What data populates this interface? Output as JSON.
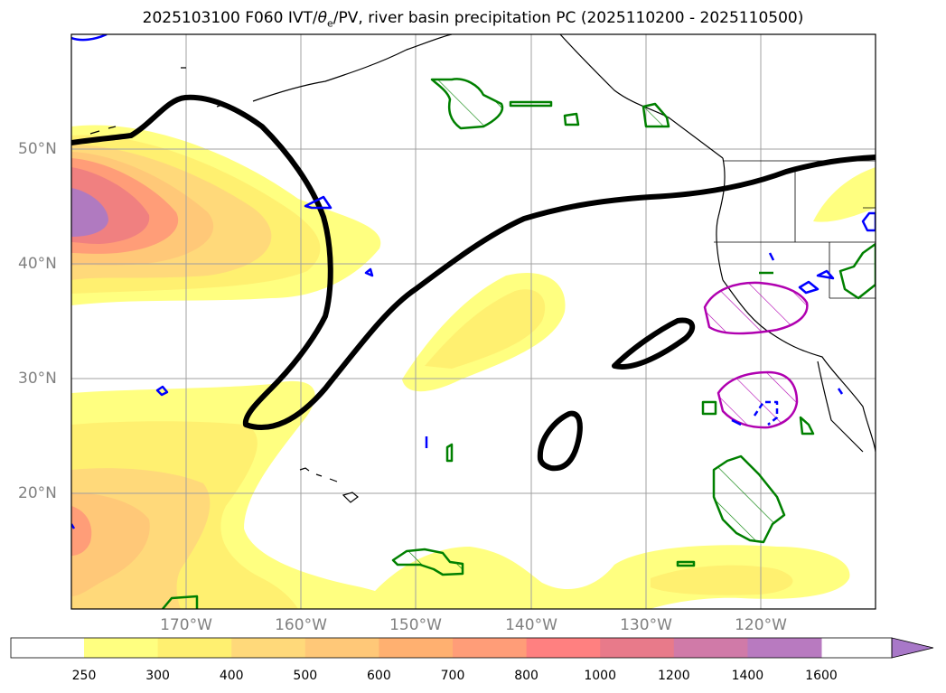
{
  "title": {
    "prefix": "2025103100 F060 IVT/",
    "theta": "θ",
    "sub": "e",
    "suffix": "/PV, river basin precipitation PC (2025110200 - 2025110500)"
  },
  "lat_labels": [
    "50°N",
    "40°N",
    "30°N",
    "20°N"
  ],
  "lon_labels": [
    "170°W",
    "160°W",
    "150°W",
    "140°W",
    "130°W",
    "120°W"
  ],
  "colorbar": {
    "levels": [
      "250",
      "300",
      "400",
      "500",
      "600",
      "700",
      "800",
      "1000",
      "1200",
      "1400",
      "1600"
    ],
    "colors": [
      "#ffffff",
      "#ffff80",
      "#fff070",
      "#ffd97a",
      "#ffc878",
      "#ffb070",
      "#ff9d78",
      "#ff8080",
      "#e87a8a",
      "#d07aa8",
      "#b87ac0",
      "#a878c8"
    ]
  },
  "colors": {
    "ivt_low": "#ffff80",
    "ivt_mid": "#ffd97a",
    "ivt_high": "#ff8c80",
    "ivt_peak": "#b07ac0",
    "pv_contour": "#000000",
    "precip_green": "#008000",
    "precip_magenta": "#b000b0",
    "theta_blue": "#0000ff"
  }
}
